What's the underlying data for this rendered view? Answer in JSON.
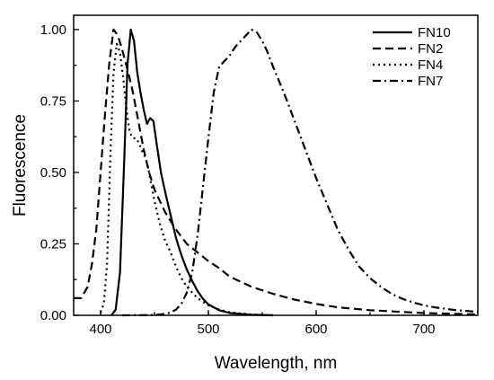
{
  "chart_data": {
    "type": "line",
    "title": "",
    "xlabel": "Wavelength, nm",
    "ylabel": "Fluorescence",
    "xlim": [
      375,
      750
    ],
    "ylim": [
      0,
      1.05
    ],
    "xticks": [
      400,
      500,
      600,
      700
    ],
    "xtick_labels": [
      "400",
      "500",
      "600",
      "700"
    ],
    "yticks": [
      0,
      0.25,
      0.5,
      0.75,
      1.0
    ],
    "ytick_labels": [
      "0.00",
      "0.25",
      "0.50",
      "0.75",
      "1.00"
    ],
    "grid": false,
    "legend_position": "top-right",
    "series": [
      {
        "name": "FN10",
        "dash": "solid",
        "points": [
          [
            410,
            0
          ],
          [
            414,
            0.02
          ],
          [
            418,
            0.15
          ],
          [
            422,
            0.55
          ],
          [
            425,
            0.88
          ],
          [
            428,
            1.0
          ],
          [
            431,
            0.96
          ],
          [
            434,
            0.85
          ],
          [
            437,
            0.78
          ],
          [
            440,
            0.72
          ],
          [
            443,
            0.67
          ],
          [
            446,
            0.69
          ],
          [
            449,
            0.68
          ],
          [
            452,
            0.6
          ],
          [
            456,
            0.5
          ],
          [
            460,
            0.43
          ],
          [
            465,
            0.35
          ],
          [
            470,
            0.27
          ],
          [
            475,
            0.21
          ],
          [
            480,
            0.16
          ],
          [
            485,
            0.12
          ],
          [
            490,
            0.085
          ],
          [
            495,
            0.058
          ],
          [
            500,
            0.038
          ],
          [
            510,
            0.018
          ],
          [
            520,
            0.008
          ],
          [
            540,
            0.002
          ],
          [
            560,
            0
          ]
        ]
      },
      {
        "name": "FN2",
        "dash": "dashed",
        "points": [
          [
            375,
            0.06
          ],
          [
            382,
            0.06
          ],
          [
            388,
            0.1
          ],
          [
            392,
            0.18
          ],
          [
            396,
            0.3
          ],
          [
            400,
            0.5
          ],
          [
            404,
            0.7
          ],
          [
            408,
            0.88
          ],
          [
            412,
            1.0
          ],
          [
            416,
            0.98
          ],
          [
            420,
            0.93
          ],
          [
            425,
            0.86
          ],
          [
            430,
            0.78
          ],
          [
            435,
            0.68
          ],
          [
            440,
            0.58
          ],
          [
            445,
            0.5
          ],
          [
            450,
            0.44
          ],
          [
            455,
            0.4
          ],
          [
            460,
            0.36
          ],
          [
            470,
            0.3
          ],
          [
            480,
            0.25
          ],
          [
            490,
            0.22
          ],
          [
            500,
            0.19
          ],
          [
            510,
            0.165
          ],
          [
            520,
            0.135
          ],
          [
            540,
            0.1
          ],
          [
            560,
            0.075
          ],
          [
            580,
            0.055
          ],
          [
            600,
            0.04
          ],
          [
            620,
            0.028
          ],
          [
            650,
            0.018
          ],
          [
            700,
            0.008
          ],
          [
            750,
            0.003
          ]
        ]
      },
      {
        "name": "FN4",
        "dash": "dotted",
        "points": [
          [
            400,
            0.01
          ],
          [
            403,
            0.04
          ],
          [
            406,
            0.18
          ],
          [
            409,
            0.55
          ],
          [
            412,
            0.85
          ],
          [
            415,
            0.95
          ],
          [
            418,
            0.92
          ],
          [
            421,
            0.83
          ],
          [
            424,
            0.72
          ],
          [
            427,
            0.64
          ],
          [
            430,
            0.62
          ],
          [
            433,
            0.62
          ],
          [
            436,
            0.6
          ],
          [
            439,
            0.57
          ],
          [
            442,
            0.55
          ],
          [
            445,
            0.5
          ],
          [
            450,
            0.4
          ],
          [
            455,
            0.32
          ],
          [
            460,
            0.26
          ],
          [
            465,
            0.22
          ],
          [
            470,
            0.17
          ],
          [
            475,
            0.13
          ],
          [
            480,
            0.1
          ],
          [
            490,
            0.06
          ],
          [
            500,
            0.035
          ],
          [
            510,
            0.02
          ],
          [
            520,
            0.01
          ],
          [
            540,
            0.003
          ],
          [
            560,
            0
          ]
        ]
      },
      {
        "name": "FN7",
        "dash": "dash-dot",
        "points": [
          [
            420,
            0
          ],
          [
            450,
            0.001
          ],
          [
            460,
            0.005
          ],
          [
            465,
            0.01
          ],
          [
            470,
            0.02
          ],
          [
            475,
            0.04
          ],
          [
            480,
            0.08
          ],
          [
            485,
            0.15
          ],
          [
            490,
            0.28
          ],
          [
            495,
            0.45
          ],
          [
            500,
            0.62
          ],
          [
            505,
            0.78
          ],
          [
            510,
            0.87
          ],
          [
            515,
            0.89
          ],
          [
            520,
            0.91
          ],
          [
            525,
            0.94
          ],
          [
            530,
            0.96
          ],
          [
            535,
            0.98
          ],
          [
            540,
            1.0
          ],
          [
            545,
            0.99
          ],
          [
            550,
            0.96
          ],
          [
            555,
            0.92
          ],
          [
            560,
            0.87
          ],
          [
            570,
            0.78
          ],
          [
            580,
            0.68
          ],
          [
            590,
            0.58
          ],
          [
            600,
            0.48
          ],
          [
            610,
            0.39
          ],
          [
            620,
            0.3
          ],
          [
            630,
            0.23
          ],
          [
            640,
            0.17
          ],
          [
            650,
            0.13
          ],
          [
            660,
            0.1
          ],
          [
            670,
            0.075
          ],
          [
            680,
            0.058
          ],
          [
            690,
            0.045
          ],
          [
            700,
            0.035
          ],
          [
            710,
            0.028
          ],
          [
            720,
            0.023
          ],
          [
            730,
            0.018
          ],
          [
            740,
            0.015
          ],
          [
            750,
            0.012
          ]
        ]
      }
    ]
  }
}
